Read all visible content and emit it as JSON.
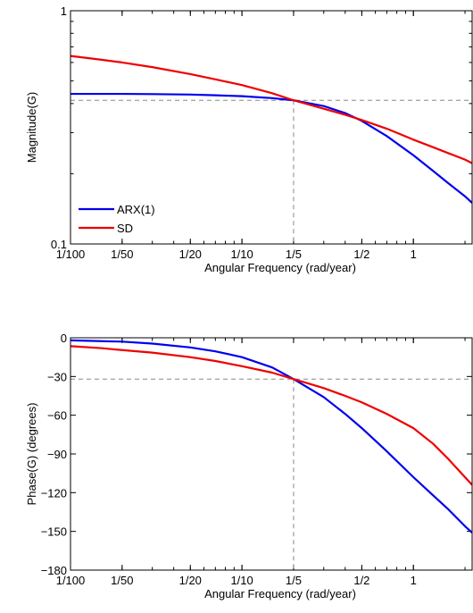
{
  "chart_data": [
    {
      "type": "line",
      "xscale": "log",
      "yscale": "log",
      "xlim": [
        0.01,
        2.2
      ],
      "ylim": [
        0.1,
        1
      ],
      "xlabel": "Angular Frequency (rad/year)",
      "ylabel": "Magnitude(G)",
      "xticks": [
        {
          "value": 0.01,
          "label": "1/100"
        },
        {
          "value": 0.02,
          "label": "1/50"
        },
        {
          "value": 0.05,
          "label": "1/20"
        },
        {
          "value": 0.1,
          "label": "1/10"
        },
        {
          "value": 0.2,
          "label": "1/5"
        },
        {
          "value": 0.5,
          "label": "1/2"
        },
        {
          "value": 1,
          "label": "1"
        }
      ],
      "yticks": [
        {
          "value": 0.1,
          "label": "0.1"
        },
        {
          "value": 1,
          "label": "1"
        }
      ],
      "legend": "bottom-left",
      "grid": false,
      "reference": {
        "x": 0.2,
        "y": 0.413
      },
      "series": [
        {
          "name": "ARX(1)",
          "color": "#0000ee",
          "x": [
            0.01,
            0.02,
            0.03,
            0.05,
            0.07,
            0.1,
            0.15,
            0.2,
            0.3,
            0.4,
            0.5,
            0.7,
            1.0,
            1.3,
            1.6,
            2.0,
            2.2
          ],
          "y": [
            0.44,
            0.44,
            0.439,
            0.437,
            0.434,
            0.43,
            0.422,
            0.413,
            0.39,
            0.364,
            0.337,
            0.29,
            0.24,
            0.206,
            0.182,
            0.16,
            0.15
          ]
        },
        {
          "name": "SD",
          "color": "#ee0000",
          "x": [
            0.01,
            0.015,
            0.02,
            0.03,
            0.05,
            0.07,
            0.1,
            0.15,
            0.2,
            0.3,
            0.4,
            0.5,
            0.7,
            1.0,
            1.3,
            1.6,
            2.0,
            2.2
          ],
          "y": [
            0.64,
            0.617,
            0.6,
            0.573,
            0.535,
            0.508,
            0.48,
            0.443,
            0.413,
            0.38,
            0.358,
            0.34,
            0.312,
            0.28,
            0.26,
            0.245,
            0.23,
            0.222
          ]
        }
      ]
    },
    {
      "type": "line",
      "xscale": "log",
      "xlim": [
        0.01,
        2.2
      ],
      "ylim": [
        -180,
        0
      ],
      "xlabel": "Angular Frequency (rad/year)",
      "ylabel": "Phase(G) (degrees)",
      "xticks": [
        {
          "value": 0.01,
          "label": "1/100"
        },
        {
          "value": 0.02,
          "label": "1/50"
        },
        {
          "value": 0.05,
          "label": "1/20"
        },
        {
          "value": 0.1,
          "label": "1/10"
        },
        {
          "value": 0.2,
          "label": "1/5"
        },
        {
          "value": 0.5,
          "label": "1/2"
        },
        {
          "value": 1,
          "label": "1"
        }
      ],
      "yticks": [
        {
          "value": 0,
          "label": "0"
        },
        {
          "value": -30,
          "label": "−30"
        },
        {
          "value": -60,
          "label": "−60"
        },
        {
          "value": -90,
          "label": "−90"
        },
        {
          "value": -120,
          "label": "−120"
        },
        {
          "value": -150,
          "label": "−150"
        },
        {
          "value": -180,
          "label": "−180"
        }
      ],
      "grid": false,
      "reference": {
        "x": 0.2,
        "y": -32
      },
      "series": [
        {
          "name": "ARX(1)",
          "color": "#0000ee",
          "x": [
            0.01,
            0.02,
            0.03,
            0.05,
            0.07,
            0.1,
            0.15,
            0.2,
            0.3,
            0.4,
            0.5,
            0.7,
            1.0,
            1.3,
            1.6,
            2.0,
            2.2
          ],
          "y": [
            -2,
            -3,
            -4.5,
            -7.5,
            -10.5,
            -15,
            -23,
            -32,
            -46,
            -59,
            -70,
            -88,
            -108,
            -122,
            -133,
            -146,
            -151
          ]
        },
        {
          "name": "SD",
          "color": "#ee0000",
          "x": [
            0.01,
            0.015,
            0.02,
            0.03,
            0.05,
            0.07,
            0.1,
            0.15,
            0.2,
            0.3,
            0.4,
            0.5,
            0.7,
            1.0,
            1.3,
            1.6,
            2.0,
            2.2
          ],
          "y": [
            -6.5,
            -8,
            -9.5,
            -11.5,
            -15,
            -18,
            -22,
            -27,
            -32,
            -39,
            -45,
            -50,
            -59,
            -70,
            -82,
            -94,
            -108,
            -114
          ]
        }
      ]
    }
  ]
}
